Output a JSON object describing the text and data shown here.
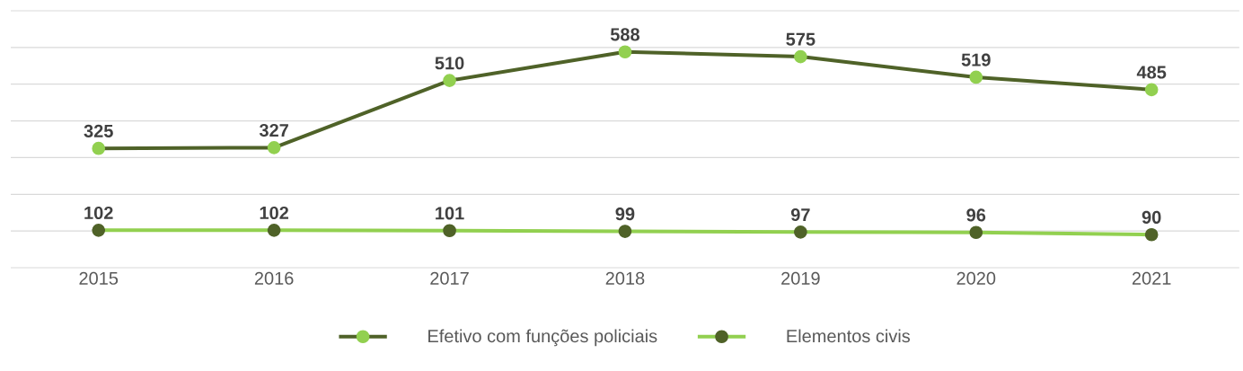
{
  "chart_data": {
    "type": "line",
    "categories": [
      "2015",
      "2016",
      "2017",
      "2018",
      "2019",
      "2020",
      "2021"
    ],
    "series": [
      {
        "name": "Efetivo com funções policiais",
        "color": "#4f6228",
        "values": [
          325,
          327,
          510,
          588,
          575,
          519,
          485
        ]
      },
      {
        "name": "Elementos civis",
        "color": "#92d050",
        "values": [
          102,
          102,
          101,
          99,
          97,
          96,
          90
        ]
      }
    ],
    "ylim": [
      0,
      700
    ],
    "yticks": [
      {
        "value": 0,
        "label": null
      },
      {
        "value": 100,
        "label": null
      },
      {
        "value": 200,
        "label": null
      },
      {
        "value": 300,
        "label": null
      },
      {
        "value": 400,
        "label": null
      },
      {
        "value": 500,
        "label": null
      },
      {
        "value": 600,
        "label": null
      },
      {
        "value": 700,
        "label": null
      }
    ],
    "grid": "y",
    "legend": "bottom",
    "tick_labels": "x",
    "marker": "circle",
    "line_style": "solid",
    "data_labels": true
  }
}
